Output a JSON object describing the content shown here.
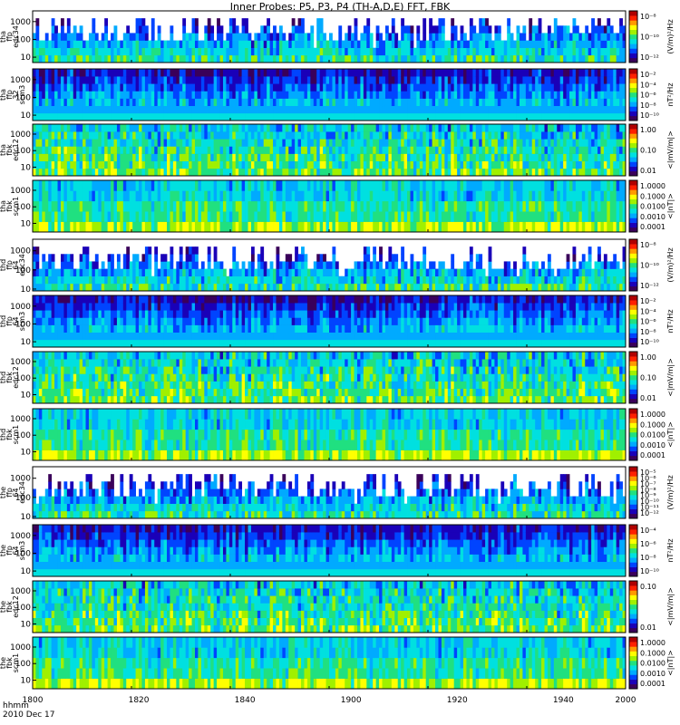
{
  "title": "Inner Probes: P5, P3, P4 (TH-A,D,E) FFT, FBK",
  "footer": {
    "time_label": "hhmm",
    "date_label": "2010 Dec 17"
  },
  "colors": {
    "palette": [
      "#3a005a",
      "#1a00b8",
      "#0044ff",
      "#00aaff",
      "#00e0e0",
      "#20e080",
      "#a0f000",
      "#ffff00",
      "#ff9900",
      "#ff2000",
      "#b00000"
    ]
  },
  "chart_data": [
    {
      "type": "heatmap",
      "panel_id": "tha-ffp-edc34",
      "ylabel_lines": [
        "tha",
        "ffp",
        "edc34"
      ],
      "ylog": true,
      "ylim": [
        5,
        4000
      ],
      "yticks": [
        10,
        100,
        1000
      ],
      "cb_label": "(V/m)²/Hz",
      "cb_ticks": [
        "10⁻⁸",
        "10⁻¹⁰",
        "10⁻¹²"
      ],
      "style": "edc34"
    },
    {
      "type": "heatmap",
      "panel_id": "tha-ffp-scm3",
      "ylabel_lines": [
        "tha",
        "ffp",
        "32",
        "scm3"
      ],
      "ylog": true,
      "ylim": [
        5,
        4000
      ],
      "yticks": [
        10,
        100,
        1000
      ],
      "cb_label": "nT²/Hz",
      "cb_ticks": [
        "10⁻²",
        "10⁻⁴",
        "10⁻⁶",
        "10⁻⁸",
        "10⁻¹⁰"
      ],
      "style": "scm3"
    },
    {
      "type": "heatmap",
      "panel_id": "tha-fbk-edc12",
      "ylabel_lines": [
        "tha",
        "fbk",
        "edc12"
      ],
      "ylog": true,
      "ylim": [
        3,
        4000
      ],
      "yticks": [
        10,
        100,
        1000
      ],
      "cb_label": "<|mV/m|>",
      "cb_ticks": [
        "1.00",
        "0.10",
        "0.01"
      ],
      "style": "edc12"
    },
    {
      "type": "heatmap",
      "panel_id": "tha-fbk-scm1",
      "ylabel_lines": [
        "tha",
        "fbk",
        "scm1"
      ],
      "ylog": true,
      "ylim": [
        3,
        4000
      ],
      "yticks": [
        10,
        100,
        1000
      ],
      "cb_label": "<|nT|>",
      "cb_ticks": [
        "1.0000",
        "0.1000",
        "0.0100",
        "0.0010",
        "0.0001"
      ],
      "style": "scm1"
    },
    {
      "type": "heatmap",
      "panel_id": "thd-ffp-edc34",
      "ylabel_lines": [
        "thd",
        "ffp",
        "64",
        "edc34"
      ],
      "ylog": true,
      "ylim": [
        8,
        4000
      ],
      "yticks": [
        10,
        100,
        1000
      ],
      "cb_label": "(V/m)²/Hz",
      "cb_ticks": [
        "10⁻⁸",
        "10⁻¹⁰",
        "10⁻¹²"
      ],
      "style": "edc34"
    },
    {
      "type": "heatmap",
      "panel_id": "thd-ffp-scm3",
      "ylabel_lines": [
        "thd",
        "ffp",
        "64",
        "scm3"
      ],
      "ylog": true,
      "ylim": [
        5,
        4000
      ],
      "yticks": [
        10,
        100,
        1000
      ],
      "cb_label": "nT²/Hz",
      "cb_ticks": [
        "10⁻²",
        "10⁻⁴",
        "10⁻⁶",
        "10⁻⁸",
        "10⁻¹⁰"
      ],
      "style": "scm3"
    },
    {
      "type": "heatmap",
      "panel_id": "thd-fbk-edc12",
      "ylabel_lines": [
        "thd",
        "fbk",
        "edc12"
      ],
      "ylog": true,
      "ylim": [
        3,
        4000
      ],
      "yticks": [
        10,
        100,
        1000
      ],
      "cb_label": "<|mV/m|>",
      "cb_ticks": [
        "1.00",
        "0.10",
        "0.01"
      ],
      "style": "edc12"
    },
    {
      "type": "heatmap",
      "panel_id": "thd-fbk-scm1",
      "ylabel_lines": [
        "thd",
        "fbk",
        "scm1"
      ],
      "ylog": true,
      "ylim": [
        3,
        4000
      ],
      "yticks": [
        10,
        100,
        1000
      ],
      "cb_label": "<|nT|>",
      "cb_ticks": [
        "1.0000",
        "0.1000",
        "0.0100",
        "0.0010",
        "0.0001"
      ],
      "style": "scm1"
    },
    {
      "type": "heatmap",
      "panel_id": "the-ffp-edc34",
      "ylabel_lines": [
        "the",
        "ffp",
        "64",
        "edc34"
      ],
      "ylog": true,
      "ylim": [
        8,
        4000
      ],
      "yticks": [
        10,
        100,
        1000
      ],
      "cb_label": "(V/m)²/Hz",
      "cb_ticks": [
        "10⁻⁵",
        "10⁻⁶",
        "10⁻⁷",
        "10⁻⁸",
        "10⁻⁹",
        "10⁻¹⁰",
        "10⁻¹¹",
        "10⁻¹²"
      ],
      "style": "edc34"
    },
    {
      "type": "heatmap",
      "panel_id": "the-ffp-scm3",
      "ylabel_lines": [
        "the",
        "ffp",
        "64",
        "scm3"
      ],
      "ylog": true,
      "ylim": [
        5,
        4000
      ],
      "yticks": [
        10,
        100,
        1000
      ],
      "cb_label": "nT²/Hz",
      "cb_ticks": [
        "10⁻⁴",
        "10⁻⁶",
        "10⁻⁸",
        "10⁻¹⁰"
      ],
      "style": "scm3"
    },
    {
      "type": "heatmap",
      "panel_id": "the-fbk-edc12",
      "ylabel_lines": [
        "the",
        "fbk",
        "edc12"
      ],
      "ylog": true,
      "ylim": [
        3,
        4000
      ],
      "yticks": [
        10,
        100,
        1000
      ],
      "cb_label": "<|mV/m|>",
      "cb_ticks": [
        "0.10",
        "0.01"
      ],
      "style": "edc12"
    },
    {
      "type": "heatmap",
      "panel_id": "the-fbk-scm1",
      "ylabel_lines": [
        "the",
        "fbk",
        "scm1"
      ],
      "ylog": true,
      "ylim": [
        3,
        4000
      ],
      "yticks": [
        10,
        100,
        1000
      ],
      "cb_label": "<|nT|>",
      "cb_ticks": [
        "1.0000",
        "0.1000",
        "0.0100",
        "0.0010",
        "0.0001"
      ],
      "style": "scm1"
    }
  ],
  "x_axis": {
    "ticks": [
      "1800",
      "1820",
      "1840",
      "1860",
      "1880",
      "1900",
      "1920",
      "1940",
      "1960",
      "1980",
      "2000"
    ],
    "labeled": [
      "1800",
      "1820",
      "1840",
      "1900",
      "1920",
      "1940",
      "2000"
    ]
  }
}
